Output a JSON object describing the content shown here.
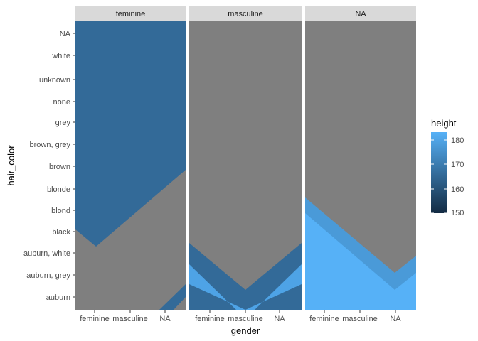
{
  "chart_data": {
    "type": "heatmap",
    "facet_var": "gender",
    "panels": [
      "feminine",
      "masculine",
      "NA"
    ],
    "x_categories": [
      "feminine",
      "masculine",
      "NA"
    ],
    "y_categories": [
      "auburn",
      "auburn, grey",
      "auburn, white",
      "black",
      "blond",
      "blonde",
      "brown",
      "brown, grey",
      "grey",
      "none",
      "unknown",
      "white",
      "NA"
    ],
    "xlabel": "gender",
    "ylabel": "hair_color",
    "fill": {
      "name": "height",
      "limits": [
        150,
        185
      ],
      "breaks": [
        150,
        160,
        170,
        180
      ],
      "low_color": "#132b43",
      "high_color": "#56b1f7"
    },
    "na_color": "#7f7f7f",
    "interpolated": true,
    "grid": false,
    "legend_position": "right",
    "cells": [
      {
        "panel": "feminine",
        "x": "feminine",
        "y": "auburn",
        "value": null
      },
      {
        "panel": "feminine",
        "x": "feminine",
        "y": "auburn, grey",
        "value": null
      },
      {
        "panel": "feminine",
        "x": "feminine",
        "y": "auburn, white",
        "value": null
      },
      {
        "panel": "feminine",
        "x": "feminine",
        "y": "black",
        "value": 166
      },
      {
        "panel": "feminine",
        "x": "feminine",
        "y": "blond",
        "value": 166
      },
      {
        "panel": "feminine",
        "x": "feminine",
        "y": "blonde",
        "value": 166
      },
      {
        "panel": "feminine",
        "x": "feminine",
        "y": "brown",
        "value": 166
      },
      {
        "panel": "feminine",
        "x": "feminine",
        "y": "brown, grey",
        "value": 166
      },
      {
        "panel": "feminine",
        "x": "feminine",
        "y": "grey",
        "value": 166
      },
      {
        "panel": "feminine",
        "x": "feminine",
        "y": "none",
        "value": 166
      },
      {
        "panel": "feminine",
        "x": "feminine",
        "y": "unknown",
        "value": 166
      },
      {
        "panel": "feminine",
        "x": "feminine",
        "y": "white",
        "value": 166
      },
      {
        "panel": "feminine",
        "x": "feminine",
        "y": "NA",
        "value": 166
      },
      {
        "panel": "feminine",
        "x": "masculine",
        "y": "black",
        "value": 166
      },
      {
        "panel": "feminine",
        "x": "masculine",
        "y": "blond",
        "value": 166
      },
      {
        "panel": "feminine",
        "x": "masculine",
        "y": "blonde",
        "value": 166
      },
      {
        "panel": "feminine",
        "x": "masculine",
        "y": "brown",
        "value": 166
      },
      {
        "panel": "feminine",
        "x": "masculine",
        "y": "NA",
        "value": 166
      },
      {
        "panel": "feminine",
        "x": "NA",
        "y": "brown",
        "value": 166
      },
      {
        "panel": "feminine",
        "x": "NA",
        "y": "NA",
        "value": 166
      },
      {
        "panel": "feminine",
        "x": "NA",
        "y": "auburn",
        "value": 166
      },
      {
        "panel": "masculine",
        "x": "feminine",
        "y": "auburn, white",
        "value": 166
      },
      {
        "panel": "masculine",
        "x": "feminine",
        "y": "auburn, grey",
        "value": 177
      },
      {
        "panel": "masculine",
        "x": "masculine",
        "y": "auburn",
        "value": 166
      },
      {
        "panel": "masculine",
        "x": "NA",
        "y": "auburn, white",
        "value": 166
      },
      {
        "panel": "masculine",
        "x": "NA",
        "y": "auburn, grey",
        "value": 177
      },
      {
        "panel": "NA",
        "x": "feminine",
        "y": "black",
        "value": 181
      },
      {
        "panel": "NA",
        "x": "feminine",
        "y": "auburn",
        "value": 183
      },
      {
        "panel": "NA",
        "x": "masculine",
        "y": "auburn",
        "value": 183
      },
      {
        "panel": "NA",
        "x": "NA",
        "y": "auburn, grey",
        "value": 181
      },
      {
        "panel": "NA",
        "x": "NA",
        "y": "auburn",
        "value": 183
      }
    ]
  }
}
